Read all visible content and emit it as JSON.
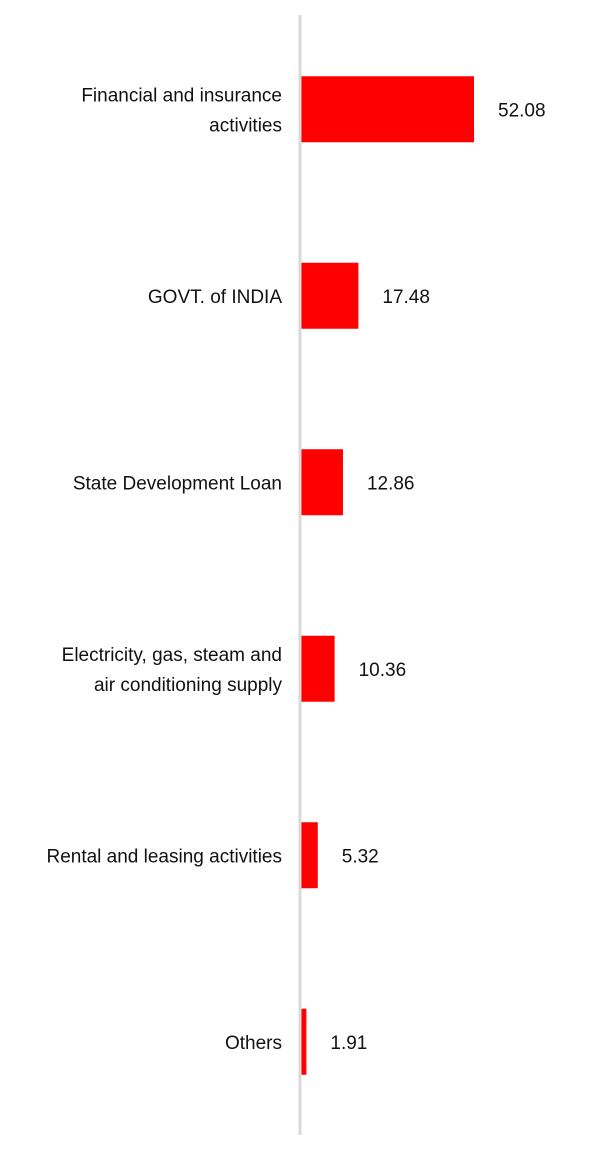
{
  "chart_data": {
    "type": "bar",
    "orientation": "horizontal",
    "categories": [
      [
        "Financial and insurance",
        "activities"
      ],
      [
        "GOVT. of INDIA"
      ],
      [
        "State Development Loan"
      ],
      [
        "Electricity, gas, steam and",
        "air conditioning supply"
      ],
      [
        "Rental and leasing activities"
      ],
      [
        "Others"
      ]
    ],
    "values": [
      52.08,
      17.48,
      12.86,
      10.36,
      5.32,
      1.91
    ],
    "value_labels": [
      "52.08",
      "17.48",
      "12.86",
      "10.36",
      "5.32",
      "1.91"
    ],
    "title": "",
    "xlabel": "",
    "ylabel": "",
    "xlim": [
      0,
      60
    ],
    "grid": false,
    "legend": "none",
    "bar_color": "#ff0000",
    "axis_color": "#d9d9d9"
  }
}
